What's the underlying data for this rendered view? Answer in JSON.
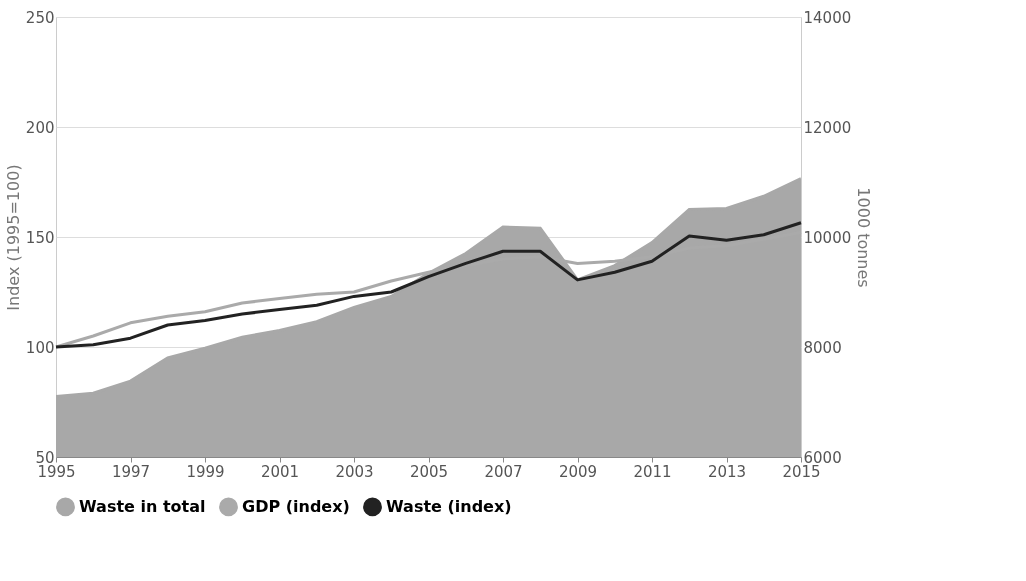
{
  "chart_data": {
    "type": "line",
    "ylabel": "Index (1995=100)",
    "y2label": "1000 tonnes",
    "x": [
      1995,
      1996,
      1997,
      1998,
      1999,
      2000,
      2001,
      2002,
      2003,
      2004,
      2005,
      2006,
      2007,
      2008,
      2009,
      2010,
      2011,
      2012,
      2013,
      2014,
      2015
    ],
    "xlim": [
      1995,
      2015
    ],
    "xticks": [
      1995,
      1997,
      1999,
      2001,
      2003,
      2005,
      2007,
      2009,
      2011,
      2013,
      2015
    ],
    "ylim": [
      50,
      250
    ],
    "yticks": [
      50,
      100,
      150,
      200,
      250
    ],
    "y2lim": [
      6000,
      14000
    ],
    "y2ticks": [
      6000,
      8000,
      10000,
      12000,
      14000
    ],
    "grid": "y",
    "legend": "bottom",
    "series": [
      {
        "name": "Waste in total",
        "type": "area",
        "axis": "y2",
        "color": "#a8a8a8",
        "values": [
          7100,
          7160,
          7380,
          7800,
          7980,
          8180,
          8300,
          8460,
          8720,
          8920,
          9340,
          9700,
          10180,
          10160,
          9220,
          9480,
          9900,
          10500,
          10520,
          10740,
          11060
        ]
      },
      {
        "name": "GDP (index)",
        "color": "#aaaaaa",
        "values": [
          100,
          105,
          111,
          114,
          116,
          120,
          122,
          124,
          125,
          130,
          134,
          137,
          140,
          141,
          138,
          139,
          141,
          145,
          146,
          149,
          152
        ]
      },
      {
        "name": "Waste (index)",
        "color": "#222222",
        "values": [
          100,
          101,
          104,
          110,
          112,
          115,
          117,
          119,
          123,
          125,
          132,
          138,
          143.5,
          143.5,
          130.5,
          134,
          139,
          150.5,
          148.5,
          151,
          156.5
        ]
      }
    ]
  }
}
